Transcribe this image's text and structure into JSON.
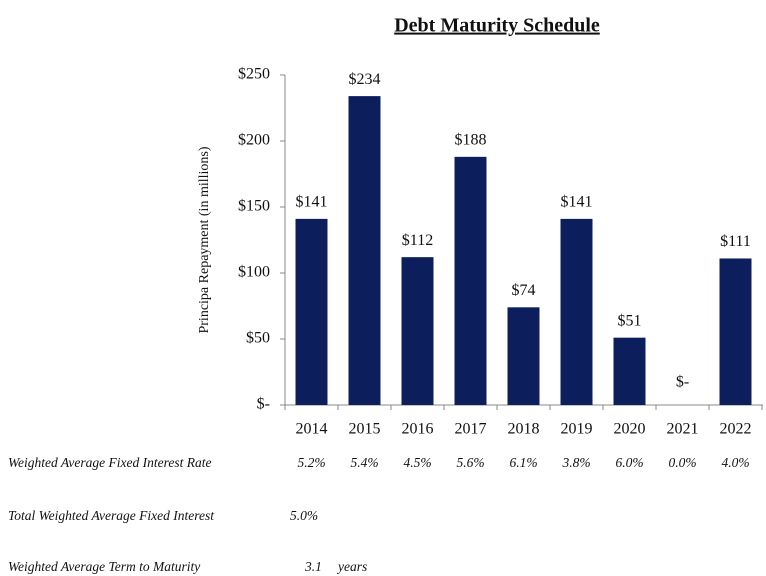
{
  "chart_data": {
    "type": "bar",
    "title": "Debt Maturity Schedule",
    "y_label": "Principa Repayment (in millions)",
    "categories": [
      "2014",
      "2015",
      "2016",
      "2017",
      "2018",
      "2019",
      "2020",
      "2021",
      "2022"
    ],
    "values": [
      141,
      234,
      112,
      188,
      74,
      141,
      51,
      0,
      111
    ],
    "value_labels": [
      "$141",
      "$234",
      "$112",
      "$188",
      "$74",
      "$141",
      "$51",
      "$-",
      "$111"
    ],
    "color": "#0c1f5c",
    "ylim": [
      0,
      250
    ],
    "yticks": [
      {
        "value": 0,
        "label": "$-"
      },
      {
        "value": 50,
        "label": "$50"
      },
      {
        "value": 100,
        "label": "$100"
      },
      {
        "value": 150,
        "label": "$150"
      },
      {
        "value": 200,
        "label": "$200"
      },
      {
        "value": 250,
        "label": "$250"
      }
    ]
  },
  "table": {
    "interest_rate": {
      "label": "Weighted Average Fixed Interest Rate",
      "values": [
        "5.2%",
        "5.4%",
        "4.5%",
        "5.6%",
        "6.1%",
        "3.8%",
        "6.0%",
        "0.0%",
        "4.0%"
      ]
    },
    "total_interest": {
      "label": "Total Weighted Average Fixed Interest",
      "value": "5.0%"
    },
    "term": {
      "label": "Weighted Average Term to Maturity",
      "value": "3.1",
      "unit": "years"
    }
  }
}
